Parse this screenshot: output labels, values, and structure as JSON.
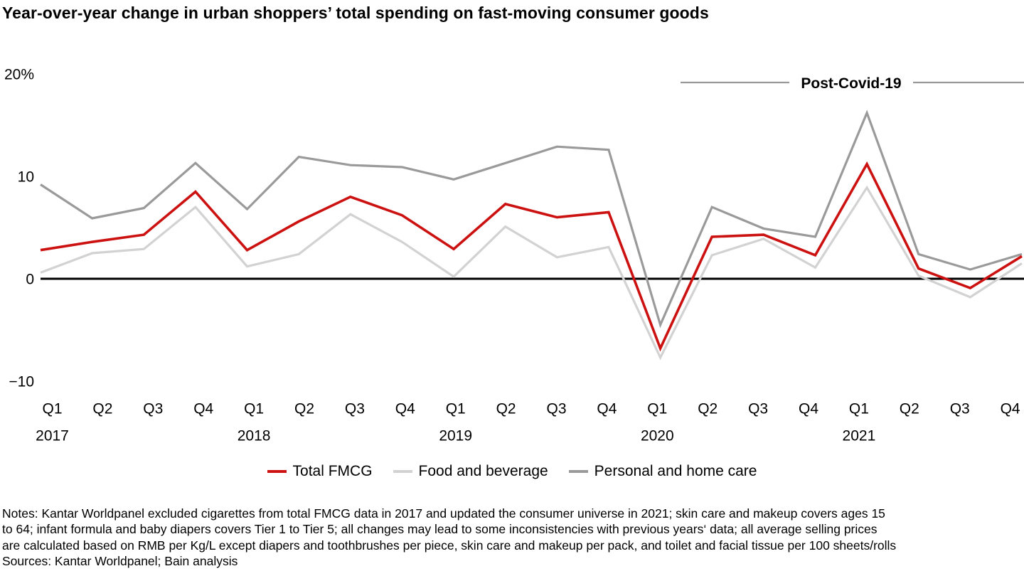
{
  "chart_data": {
    "type": "line",
    "title": "Year-over-year change in urban shoppers’ total spending on fast-moving consumer goods",
    "ylim": [
      -10,
      20
    ],
    "grid": false,
    "legend_position": "bottom",
    "annotation": {
      "label": "Post-Covid-19"
    },
    "y_axis": {
      "ticks": [
        {
          "label": "20%",
          "value": 20
        },
        {
          "label": "10",
          "value": 10
        },
        {
          "label": "0",
          "value": 0
        },
        {
          "label": "−10",
          "value": -10
        }
      ]
    },
    "quarters": [
      "Q1",
      "Q2",
      "Q3",
      "Q4",
      "Q1",
      "Q2",
      "Q3",
      "Q4",
      "Q1",
      "Q2",
      "Q3",
      "Q4",
      "Q1",
      "Q2",
      "Q3",
      "Q4",
      "Q1",
      "Q2",
      "Q3",
      "Q4"
    ],
    "year_ticks": [
      {
        "label": "2017",
        "quarter_index": 0
      },
      {
        "label": "2018",
        "quarter_index": 4
      },
      {
        "label": "2019",
        "quarter_index": 8
      },
      {
        "label": "2020",
        "quarter_index": 12
      },
      {
        "label": "2021",
        "quarter_index": 16
      }
    ],
    "series": [
      {
        "id": "total-fmcg",
        "name": "Total FMCG",
        "color": "#cc1111",
        "width": 3.6,
        "values": [
          2.8,
          3.6,
          4.3,
          8.5,
          2.8,
          5.6,
          8.0,
          6.2,
          2.9,
          7.3,
          6.0,
          6.5,
          -6.8,
          4.1,
          4.3,
          2.3,
          11.2,
          1.0,
          -0.9,
          2.2
        ]
      },
      {
        "id": "food-and-beverage",
        "name": "Food and beverage",
        "color": "#d2d2d2",
        "width": 3.2,
        "values": [
          0.6,
          2.5,
          2.9,
          7.0,
          1.2,
          2.4,
          6.3,
          3.6,
          0.2,
          5.1,
          2.1,
          3.1,
          -7.7,
          2.3,
          3.9,
          1.1,
          8.9,
          0.3,
          -1.8,
          1.5
        ]
      },
      {
        "id": "personal-and-home-care",
        "name": "Personal and home care",
        "color": "#9a9a9a",
        "width": 3.2,
        "values": [
          9.2,
          5.9,
          6.9,
          11.3,
          6.8,
          11.9,
          11.1,
          10.9,
          9.7,
          11.3,
          12.9,
          12.6,
          -4.5,
          7.0,
          4.9,
          4.1,
          16.2,
          2.4,
          0.9,
          2.4
        ]
      }
    ],
    "draw_order": [
      1,
      2,
      0
    ]
  },
  "notes": {
    "lines": [
      "Notes: Kantar Worldpanel excluded cigarettes from total FMCG data in 2017 and updated the consumer universe in 2021; skin care and makeup covers ages 15",
      "to 64; infant formula and baby diapers covers Tier 1 to Tier 5; all changes may lead to some inconsistencies with previous years‘ data; all average selling prices",
      "are calculated based on RMB per Kg/L except diapers and toothbrushes per piece, skin care and makeup per pack, and toilet and facial tissue per 100 sheets/rolls"
    ],
    "sources": "Sources: Kantar Worldpanel; Bain analysis"
  }
}
